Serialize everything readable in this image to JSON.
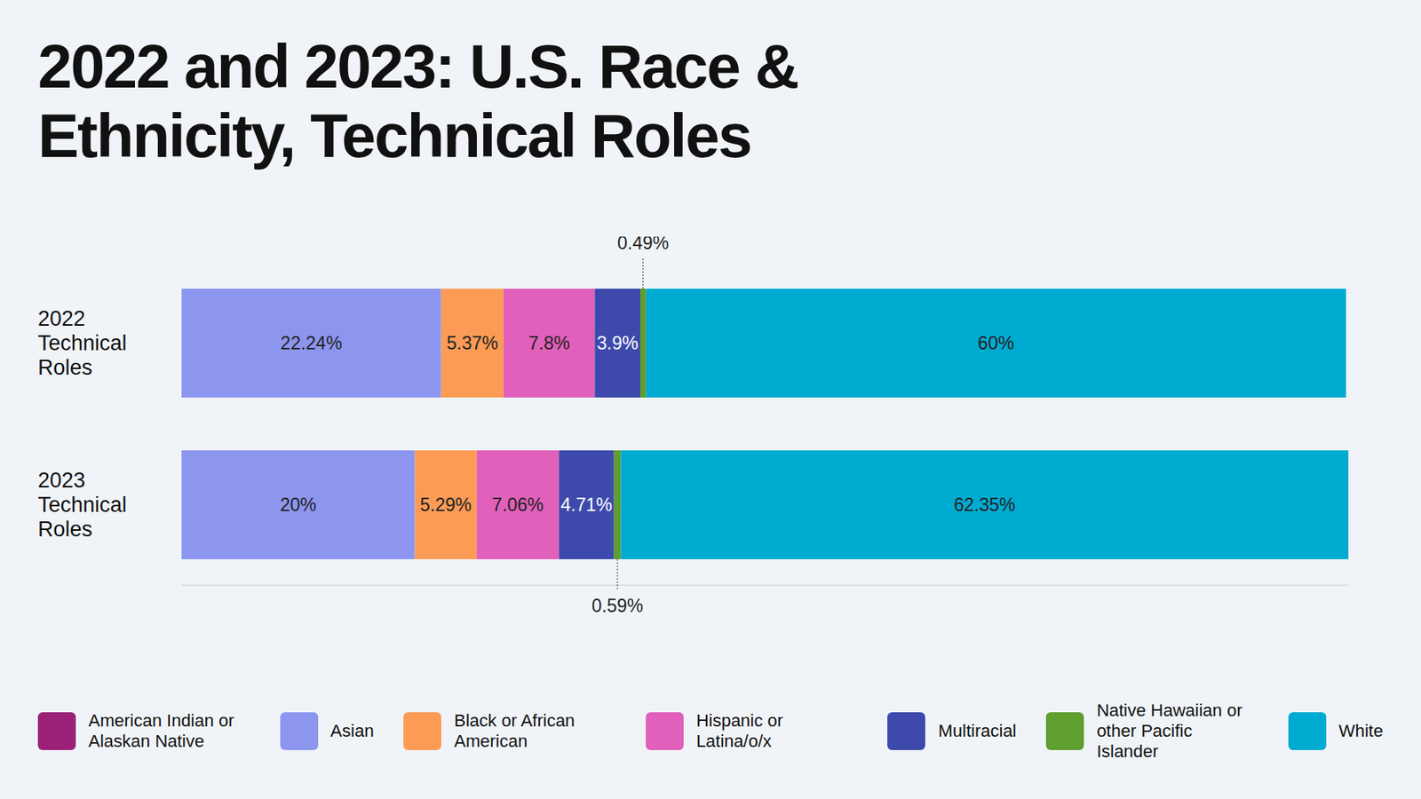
{
  "chart_data": {
    "type": "bar",
    "title": "2022 and 2023: U.S. Race & Ethnicity, Technical Roles",
    "orientation": "horizontal",
    "stacked": true,
    "data_labels": true,
    "tick_labels": "y",
    "categories": [
      "2022 Technical Roles",
      "2023 Technical Roles"
    ],
    "xlim": [
      0,
      100
    ],
    "series": [
      {
        "name": "American Indian or Alaskan Native",
        "color": "#9b2177",
        "values": [
          0,
          0
        ]
      },
      {
        "name": "Asian",
        "color": "#8c96ef",
        "values": [
          22.24,
          20
        ],
        "value_labels": [
          "22.24%",
          "20%"
        ]
      },
      {
        "name": "Black or African American",
        "color": "#fb9b55",
        "values": [
          5.37,
          5.29
        ],
        "value_labels": [
          "5.37%",
          "5.29%"
        ]
      },
      {
        "name": "Hispanic or Latina/o/x",
        "color": "#e060bb",
        "values": [
          7.8,
          7.06
        ],
        "value_labels": [
          "7.8%",
          "7.06%"
        ]
      },
      {
        "name": "Multiracial",
        "color": "#3d4aab",
        "values": [
          3.9,
          4.71
        ],
        "value_labels": [
          "3.9%",
          "4.71%"
        ]
      },
      {
        "name": "Native Hawaiian or other Pacific Islander",
        "color": "#5f9e2f",
        "values": [
          0.49,
          0.59
        ],
        "value_labels": [
          "0.49%",
          "0.59%"
        ]
      },
      {
        "name": "White",
        "color": "#00abd1",
        "values": [
          60,
          62.35
        ],
        "value_labels": [
          "60%",
          "62.35%"
        ]
      }
    ]
  }
}
